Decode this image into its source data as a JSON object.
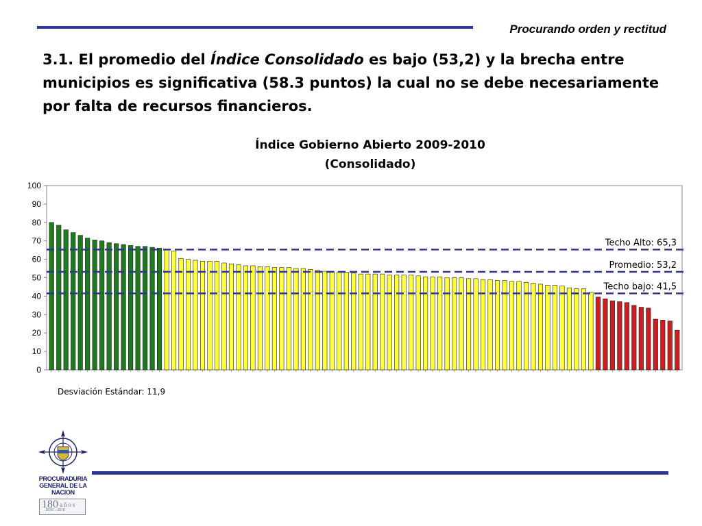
{
  "header": {
    "tagline": "Procurando orden y rectitud",
    "heading_prefix": "3.1. El promedio del ",
    "heading_emphasis": "Índice Consolidado",
    "heading_suffix": " es bajo (53,2) y la brecha entre municipios es significativa (58.3 puntos) la cual no se debe necesariamente por falta de recursos financieros."
  },
  "footer": {
    "std_dev": "Desviación Estándar: 11,9",
    "logo": {
      "line1": "PROCURADURIA",
      "line2": "GENERAL DE LA NACION",
      "years": "180",
      "anos": "años",
      "range": "1830 - 2010"
    }
  },
  "colors": {
    "rule": "#2e3592",
    "high": "#1e7a1e",
    "mid": "#ffff40",
    "low": "#cc1f1f",
    "reference_line": "#2e3592"
  },
  "chart_data": {
    "type": "bar",
    "title": "Índice Gobierno Abierto 2009-2010",
    "subtitle": "(Consolidado)",
    "xlabel": "",
    "ylabel": "",
    "ylim": [
      0,
      100
    ],
    "yticks": [
      0,
      10,
      20,
      30,
      40,
      50,
      60,
      70,
      80,
      90,
      100
    ],
    "grid": false,
    "values": [
      80,
      78.5,
      76,
      74.5,
      73,
      71.5,
      70.5,
      70,
      69,
      68.5,
      68,
      67.5,
      67,
      67,
      66.5,
      66,
      65,
      64.5,
      60.5,
      60,
      59.5,
      59,
      59,
      59,
      58,
      57.5,
      57,
      56.5,
      56.5,
      56,
      56,
      55.5,
      55.5,
      55.5,
      55,
      55,
      54.5,
      54,
      53.5,
      53.5,
      53,
      53,
      52.5,
      52,
      52,
      52,
      52,
      51.5,
      51.5,
      51.5,
      51.5,
      51,
      50.5,
      50.5,
      50.5,
      50,
      50,
      50,
      49.5,
      49.5,
      49,
      49,
      48.5,
      48.5,
      48,
      48,
      47.5,
      47,
      46.5,
      46,
      46,
      45.5,
      44.5,
      44,
      44,
      42,
      39.5,
      38.5,
      37.5,
      37,
      36.5,
      35,
      34,
      33.5,
      27.5,
      27,
      26.5,
      21.5
    ],
    "thresholds": {
      "high": 65.3,
      "low": 41.5
    },
    "reference_lines": [
      {
        "label": "Techo Alto: 65,3",
        "value": 65.3
      },
      {
        "label": "Promedio: 53,2",
        "value": 53.2
      },
      {
        "label": "Techo bajo: 41,5",
        "value": 41.5
      }
    ]
  }
}
